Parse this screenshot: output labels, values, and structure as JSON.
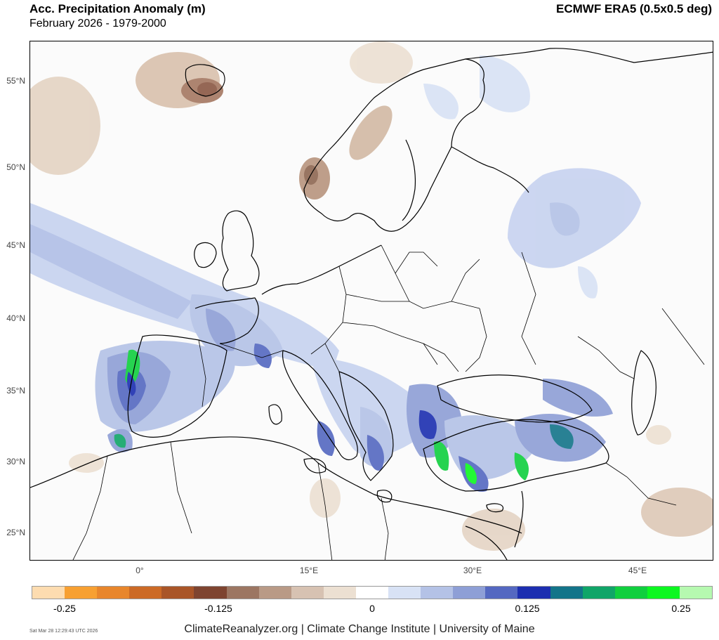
{
  "header": {
    "title": "Acc. Precipitation Anomaly (m)",
    "subtitle": "February 2026 - 1979-2000",
    "source": "ECMWF ERA5 (0.5x0.5 deg)"
  },
  "map": {
    "lat_labels": [
      "55°N",
      "50°N",
      "45°N",
      "40°N",
      "35°N",
      "30°N",
      "25°N"
    ],
    "lon_labels": [
      "0°",
      "15°E",
      "30°E",
      "45°E"
    ]
  },
  "colorbar": {
    "colors": [
      "#fddcb0",
      "#f7a032",
      "#e8862c",
      "#cc6a26",
      "#a95528",
      "#7e4430",
      "#9c7662",
      "#b99a86",
      "#d7c2b2",
      "#ece0d2",
      "#ffffff",
      "#d8e2f5",
      "#b4c2e6",
      "#8e9fd6",
      "#5468c1",
      "#1c2eb0",
      "#137489",
      "#10a568",
      "#10cf3e",
      "#0cf720",
      "#b6f9b0"
    ],
    "tick_labels": [
      "-0.25",
      "-0.125",
      "0",
      "0.125",
      "0.25"
    ]
  },
  "footer": {
    "credit": "ClimateReanalyzer.org | Climate Change Institute | University of Maine",
    "timestamp": "Sat Mar 28 12:29:43 UTC 2026"
  }
}
